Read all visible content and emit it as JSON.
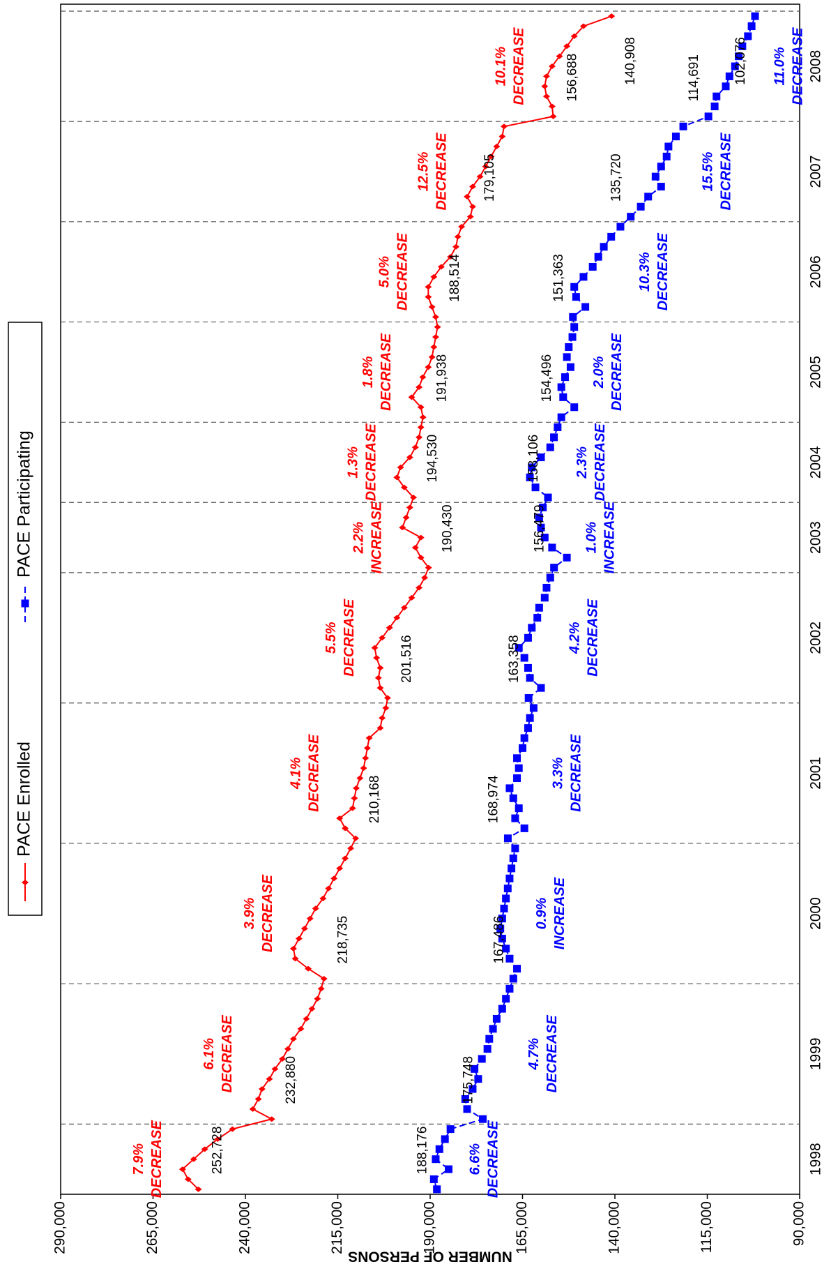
{
  "chart_data": {
    "type": "line",
    "y_title": "NUMBER OF PERSONS",
    "ylim": [
      90000,
      290000
    ],
    "yticks": [
      {
        "value": 90000,
        "label": "90,000"
      },
      {
        "value": 115000,
        "label": "115,000"
      },
      {
        "value": 140000,
        "label": "140,000"
      },
      {
        "value": 165000,
        "label": "165,000"
      },
      {
        "value": 190000,
        "label": "190,000"
      },
      {
        "value": 215000,
        "label": "215,000"
      },
      {
        "value": 240000,
        "label": "240,000"
      },
      {
        "value": 265000,
        "label": "265,000"
      },
      {
        "value": 290000,
        "label": "290,000"
      }
    ],
    "legend": "top",
    "categories": [
      "1998",
      "1998",
      "1998",
      "1998",
      "1998",
      "1998",
      "1998",
      "1999",
      "1999",
      "1999",
      "1999",
      "1999",
      "1999",
      "1999",
      "1999",
      "1999",
      "1999",
      "1999",
      "1999",
      "1999",
      "1999",
      "2000",
      "2000",
      "2000",
      "2000",
      "2000",
      "2000",
      "2000",
      "2000",
      "2000",
      "2000",
      "2000",
      "2000",
      "2000",
      "2000",
      "2001",
      "2001",
      "2001",
      "2001",
      "2001",
      "2001",
      "2001",
      "2001",
      "2001",
      "2001",
      "2001",
      "2001",
      "2001",
      "2001",
      "2002",
      "2002",
      "2002",
      "2002",
      "2002",
      "2002",
      "2002",
      "2002",
      "2002",
      "2002",
      "2002",
      "2002",
      "2002",
      "2003",
      "2003",
      "2003",
      "2003",
      "2003",
      "2003",
      "2003",
      "2004",
      "2004",
      "2004",
      "2004",
      "2004",
      "2004",
      "2004",
      "2004",
      "2005",
      "2005",
      "2005",
      "2005",
      "2005",
      "2005",
      "2005",
      "2005",
      "2005",
      "2005",
      "2006",
      "2006",
      "2006",
      "2006",
      "2006",
      "2006",
      "2006",
      "2006",
      "2006",
      "2006",
      "2007",
      "2007",
      "2007",
      "2007",
      "2007",
      "2007",
      "2007",
      "2007",
      "2007",
      "2007",
      "2008",
      "2008",
      "2008",
      "2008",
      "2008",
      "2008",
      "2008",
      "2008",
      "2008",
      "2008",
      "2008"
    ],
    "series": [
      {
        "name": "PACE Enrolled",
        "color": "#ff0000",
        "marker": "diamond",
        "dashed": false,
        "values": [
          252728,
          255500,
          257000,
          254000,
          251000,
          247500,
          243500,
          232880,
          238000,
          236500,
          235500,
          233500,
          232000,
          230000,
          228500,
          227000,
          225000,
          223500,
          222000,
          220500,
          219500,
          218735,
          223000,
          226500,
          227000,
          225500,
          224000,
          222500,
          221000,
          219000,
          217500,
          216000,
          214500,
          213000,
          211500,
          210168,
          213000,
          214500,
          211000,
          210500,
          210000,
          209000,
          208000,
          207500,
          207000,
          206500,
          203500,
          203000,
          202000,
          201516,
          203500,
          204000,
          203500,
          204500,
          205000,
          203000,
          201000,
          199000,
          197000,
          195000,
          193000,
          191500,
          190430,
          192500,
          194000,
          192500,
          197500,
          196500,
          195500,
          194530,
          197000,
          199000,
          198000,
          195500,
          194000,
          193000,
          192500,
          191938,
          192500,
          195000,
          193000,
          192000,
          190500,
          189500,
          189000,
          188500,
          188000,
          188514,
          189500,
          190500,
          190500,
          189000,
          187000,
          184500,
          183000,
          182500,
          181500,
          179105,
          178500,
          180000,
          178500,
          176500,
          175000,
          173500,
          172000,
          170500,
          170000,
          156688,
          157000,
          158500,
          159000,
          158500,
          157000,
          155000,
          153000,
          151000,
          148500,
          140908
        ],
        "value_labels": [
          "252,728",
          null,
          null,
          null,
          null,
          null,
          null,
          "232,880",
          null,
          null,
          null,
          null,
          null,
          null,
          null,
          null,
          null,
          null,
          null,
          null,
          null,
          "218,735",
          null,
          null,
          null,
          null,
          null,
          null,
          null,
          null,
          null,
          null,
          null,
          null,
          null,
          "210,168",
          null,
          null,
          null,
          null,
          null,
          null,
          null,
          null,
          null,
          null,
          null,
          null,
          null,
          "201,516",
          null,
          null,
          null,
          null,
          null,
          null,
          null,
          null,
          null,
          null,
          null,
          null,
          "190,430",
          null,
          null,
          null,
          null,
          null,
          null,
          "194,530",
          null,
          null,
          null,
          null,
          null,
          null,
          null,
          "191,938",
          null,
          null,
          null,
          null,
          null,
          null,
          null,
          null,
          null,
          "188,514",
          null,
          null,
          null,
          null,
          null,
          null,
          null,
          null,
          null,
          "179,105",
          null,
          null,
          null,
          null,
          null,
          null,
          null,
          null,
          null,
          "156,688",
          null,
          null,
          null,
          null,
          null,
          null,
          null,
          null,
          null,
          "140,908"
        ],
        "annotations": [
          [
            "7.9%",
            "DECREASE"
          ],
          [
            "6.1%",
            "DECREASE"
          ],
          [
            "3.9%",
            "DECREASE"
          ],
          [
            "4.1%",
            "DECREASE"
          ],
          [
            "5.5%",
            "DECREASE"
          ],
          [
            "2.2%",
            "INCREASE"
          ],
          [
            "1.3%",
            "DECREASE"
          ],
          [
            "1.8%",
            "DECREASE"
          ],
          [
            "5.0%",
            "DECREASE"
          ],
          [
            "12.5%",
            "DECREASE"
          ],
          [
            "10.1%",
            "DECREASE"
          ]
        ]
      },
      {
        "name": "PACE Participating",
        "color": "#0000ff",
        "marker": "square",
        "dashed": true,
        "values": [
          188176,
          189000,
          185000,
          188500,
          187500,
          186000,
          184500,
          175748,
          180000,
          180500,
          178500,
          177000,
          178000,
          176000,
          174500,
          174000,
          173000,
          172000,
          170500,
          169500,
          168500,
          167486,
          166500,
          168500,
          169500,
          170500,
          171000,
          170500,
          170000,
          169500,
          169000,
          168500,
          168000,
          167500,
          167000,
          168974,
          164500,
          167000,
          166000,
          167500,
          168500,
          166500,
          166000,
          166500,
          165000,
          164500,
          163500,
          163000,
          162000,
          163358,
          160000,
          163000,
          163500,
          164500,
          166000,
          163500,
          162500,
          161000,
          160500,
          159000,
          158500,
          157500,
          156479,
          153000,
          157000,
          159000,
          160000,
          160500,
          159500,
          158106,
          161500,
          163000,
          162500,
          160000,
          157500,
          156500,
          155500,
          154496,
          151000,
          154000,
          154500,
          153500,
          152000,
          153000,
          152500,
          151500,
          151000,
          151363,
          148000,
          150500,
          151000,
          148500,
          146000,
          144500,
          143000,
          141000,
          138500,
          135720,
          133000,
          131000,
          127500,
          129000,
          127500,
          126000,
          125500,
          123500,
          121500,
          114691,
          113000,
          112500,
          110000,
          109000,
          107500,
          106500,
          105500,
          104000,
          103000,
          102076
        ],
        "value_labels": [
          "188,176",
          null,
          null,
          null,
          null,
          null,
          null,
          "175,748",
          null,
          null,
          null,
          null,
          null,
          null,
          null,
          null,
          null,
          null,
          null,
          null,
          null,
          "167,486",
          null,
          null,
          null,
          null,
          null,
          null,
          null,
          null,
          null,
          null,
          null,
          null,
          null,
          "168,974",
          null,
          null,
          null,
          null,
          null,
          null,
          null,
          null,
          null,
          null,
          null,
          null,
          null,
          "163,358",
          null,
          null,
          null,
          null,
          null,
          null,
          null,
          null,
          null,
          null,
          null,
          null,
          "156,479",
          null,
          null,
          null,
          null,
          null,
          null,
          "158,106",
          null,
          null,
          null,
          null,
          null,
          null,
          null,
          "154,496",
          null,
          null,
          null,
          null,
          null,
          null,
          null,
          null,
          null,
          "151,363",
          null,
          null,
          null,
          null,
          null,
          null,
          null,
          null,
          null,
          "135,720",
          null,
          null,
          null,
          null,
          null,
          null,
          null,
          null,
          null,
          "114,691",
          null,
          null,
          null,
          null,
          null,
          null,
          null,
          null,
          null,
          "102,076"
        ],
        "annotations": [
          [
            "6.6%",
            "DECREASE"
          ],
          [
            "4.7%",
            "DECREASE"
          ],
          [
            "0.9%",
            "INCREASE"
          ],
          [
            "3.3%",
            "DECREASE"
          ],
          [
            "4.2%",
            "DECREASE"
          ],
          [
            "1.0%",
            "INCREASE"
          ],
          [
            "2.3%",
            "DECREASE"
          ],
          [
            "2.0%",
            "DECREASE"
          ],
          [
            "10.3%",
            "DECREASE"
          ],
          [
            "15.5%",
            "DECREASE"
          ],
          [
            "11.0%",
            "DECREASE"
          ]
        ]
      }
    ]
  }
}
